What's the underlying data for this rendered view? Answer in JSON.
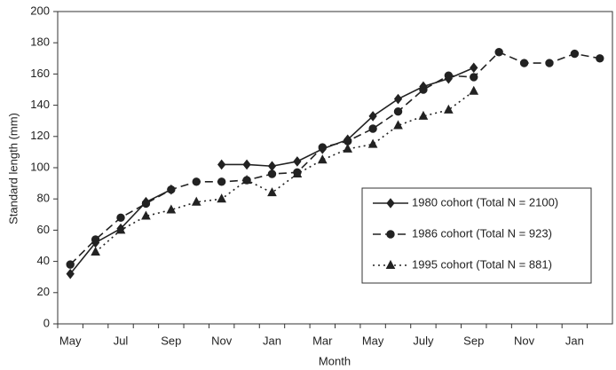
{
  "chart_data": {
    "type": "line",
    "y_label": "Standard length (mm)",
    "x_label": "Month",
    "categories": [
      "May",
      null,
      "Jul",
      null,
      "Sep",
      null,
      "Nov",
      null,
      "Jan",
      null,
      "Mar",
      null,
      "May",
      null,
      "July",
      null,
      "Sep",
      null,
      "Nov",
      null,
      "Jan",
      null
    ],
    "series": [
      {
        "name": "1980 cohort (Total N = 2100)",
        "color": "#222222",
        "marker": "diamond",
        "dash": "solid",
        "values": [
          32,
          52,
          61,
          78,
          86,
          null,
          102,
          102,
          101,
          104,
          112,
          118,
          133,
          144,
          152,
          157,
          164,
          null,
          null,
          null,
          null,
          null
        ]
      },
      {
        "name": "1986 cohort (Total N = 923)",
        "color": "#222222",
        "marker": "circle",
        "dash": "long",
        "values": [
          38,
          54,
          68,
          77,
          86,
          91,
          91,
          92,
          96,
          97,
          113,
          117,
          125,
          136,
          150,
          159,
          158,
          174,
          167,
          167,
          173,
          170
        ]
      },
      {
        "name": "1995 cohort (Total N = 881)",
        "color": "#222222",
        "marker": "triangle",
        "dash": "dotted",
        "values": [
          null,
          46,
          60,
          69,
          73,
          78,
          80,
          92,
          84,
          96,
          105,
          112,
          115,
          127,
          133,
          137,
          149,
          null,
          null,
          null,
          null,
          null
        ]
      }
    ],
    "ylim": [
      0,
      200
    ],
    "yticks": [
      0,
      20,
      40,
      60,
      80,
      100,
      120,
      140,
      160,
      180,
      200
    ],
    "grid": false
  }
}
